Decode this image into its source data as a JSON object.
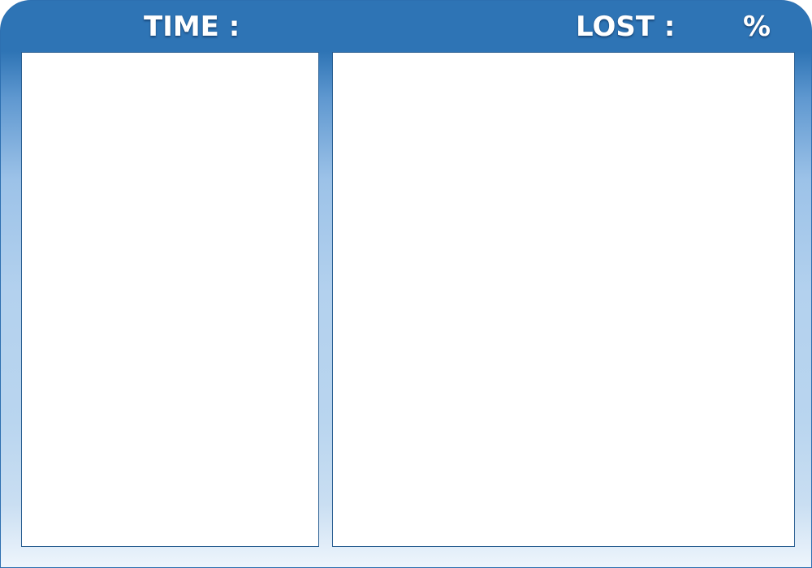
{
  "hud": {
    "time_label": "TIME :",
    "lost_label": "LOST :",
    "percent_sign": "%"
  },
  "colors": {
    "header": "#2e74b5",
    "panel_border": "#2a5f92",
    "panel_fill": "#ffffff",
    "text": "#ffffff"
  }
}
